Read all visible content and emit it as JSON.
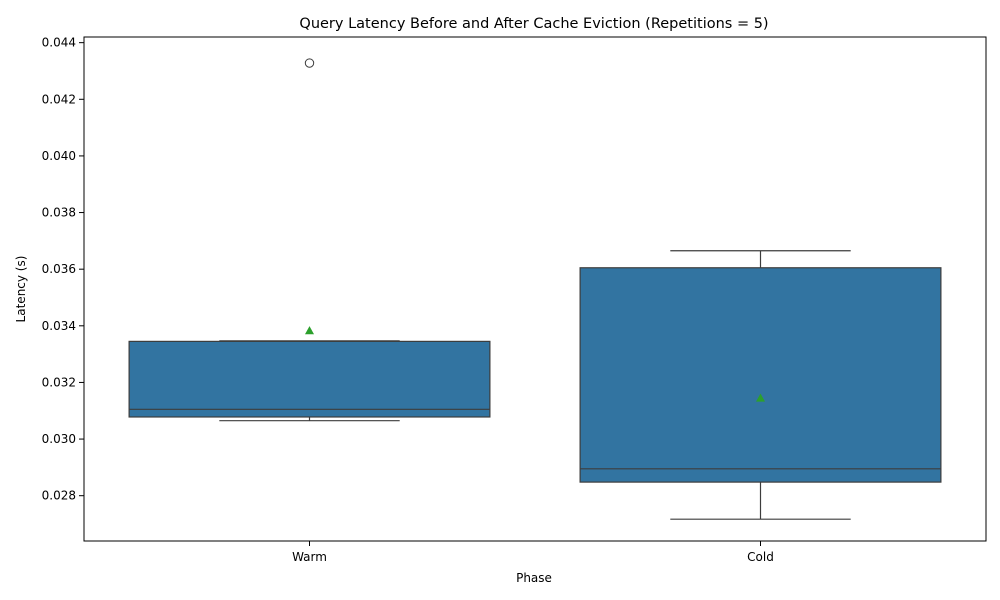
{
  "chart_data": {
    "type": "box",
    "title": "Query Latency Before and After Cache Eviction (Repetitions = 5)",
    "xlabel": "Phase",
    "ylabel": "Latency (s)",
    "ylim": [
      0.0264,
      0.0442
    ],
    "yticks": [
      "0.028",
      "0.030",
      "0.032",
      "0.034",
      "0.036",
      "0.038",
      "0.040",
      "0.042",
      "0.044"
    ],
    "ytick_values": [
      0.028,
      0.03,
      0.032,
      0.034,
      0.036,
      0.038,
      0.04,
      0.042,
      0.044
    ],
    "categories": [
      "Warm",
      "Cold"
    ],
    "boxes": [
      {
        "category": "Warm",
        "whisker_low": 0.03065,
        "q1": 0.03078,
        "median": 0.03105,
        "q3": 0.03345,
        "whisker_high": 0.03347,
        "mean": 0.03383,
        "outliers": [
          0.04328
        ]
      },
      {
        "category": "Cold",
        "whisker_low": 0.02717,
        "q1": 0.02848,
        "median": 0.02895,
        "q3": 0.03605,
        "whisker_high": 0.03665,
        "mean": 0.03145,
        "outliers": []
      }
    ],
    "colors": {
      "box_fill": "#3274a1",
      "line": "#3d3d3d",
      "mean_marker": "#2ca02c"
    },
    "grid": false,
    "legend": "none"
  }
}
